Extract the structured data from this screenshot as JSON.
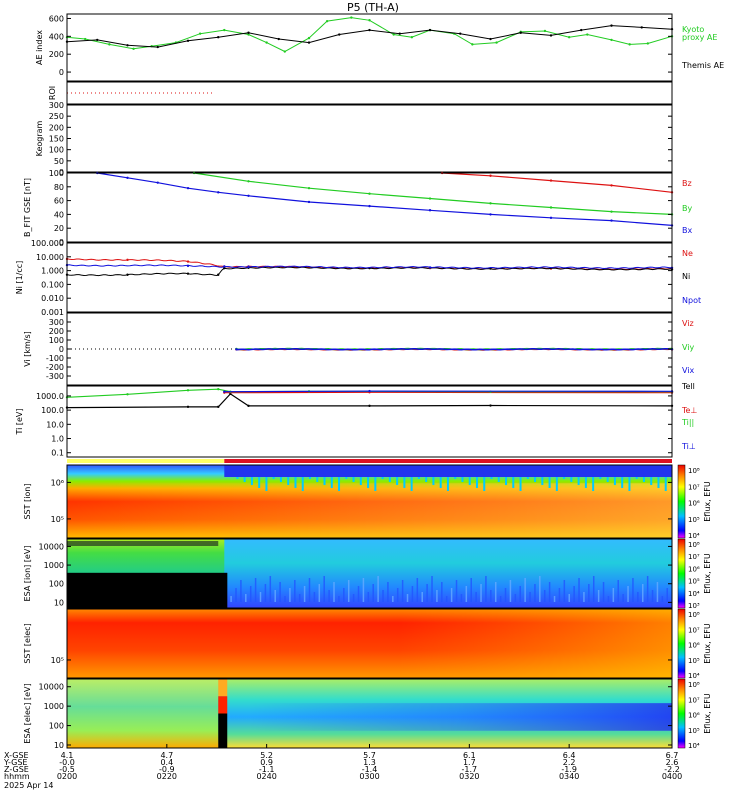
{
  "title": "P5 (TH-A)",
  "colors": {
    "green": "#22cc22",
    "red": "#dd1111",
    "blue": "#1111dd",
    "black": "#000000",
    "bar_yellow": "#ffff66",
    "bar_red": "#dd1122"
  },
  "chart_data": [
    {
      "type": "line",
      "panel": "ae",
      "ylabel": "AE index",
      "ylim": [
        -100,
        650
      ],
      "yticks": [
        0,
        200,
        400,
        600
      ],
      "ytick_labels": [
        "0",
        "200",
        "400",
        "600"
      ],
      "series": [
        {
          "name": "Kyoto proxy AE",
          "color": "green",
          "x": [
            0,
            0.03,
            0.07,
            0.11,
            0.14,
            0.18,
            0.22,
            0.26,
            0.3,
            0.33,
            0.36,
            0.4,
            0.43,
            0.47,
            0.5,
            0.54,
            0.57,
            0.6,
            0.64,
            0.67,
            0.71,
            0.75,
            0.79,
            0.83,
            0.86,
            0.9,
            0.93,
            0.96,
            1.0
          ],
          "values": [
            390,
            370,
            310,
            260,
            290,
            330,
            430,
            470,
            420,
            330,
            230,
            380,
            570,
            610,
            580,
            420,
            390,
            470,
            430,
            310,
            330,
            450,
            460,
            390,
            420,
            360,
            310,
            320,
            400
          ]
        },
        {
          "name": "Themis AE",
          "color": "black",
          "x": [
            0,
            0.05,
            0.1,
            0.15,
            0.2,
            0.25,
            0.3,
            0.35,
            0.4,
            0.45,
            0.5,
            0.55,
            0.6,
            0.65,
            0.7,
            0.75,
            0.8,
            0.85,
            0.9,
            0.95,
            1.0
          ],
          "values": [
            340,
            360,
            300,
            280,
            350,
            390,
            440,
            370,
            330,
            420,
            470,
            430,
            470,
            430,
            370,
            440,
            410,
            470,
            520,
            500,
            480
          ]
        }
      ],
      "legend": [
        {
          "label": "Kyoto",
          "color": "green"
        },
        {
          "label": "proxy AE",
          "color": "green"
        },
        {
          "label": "Themis AE",
          "color": "black"
        }
      ]
    },
    {
      "type": "line",
      "panel": "roi",
      "ylabel": "ROI",
      "ylim": [
        0,
        1
      ],
      "series": [
        {
          "name": "",
          "color": "red",
          "x": [
            0,
            0.24
          ],
          "values": [
            0.5,
            0.5
          ]
        }
      ]
    },
    {
      "type": "line",
      "panel": "keogram",
      "ylabel": "Keogram",
      "ylim": [
        0,
        300
      ],
      "yticks": [
        0,
        50,
        100,
        150,
        200,
        250,
        300
      ],
      "ytick_labels": [
        "0",
        "50",
        "100",
        "150",
        "200",
        "250",
        "300"
      ],
      "series": []
    },
    {
      "type": "line",
      "panel": "b",
      "ylabel": "B_FIT GSE [nT]",
      "ylim": [
        0,
        100
      ],
      "yticks": [
        0,
        20,
        40,
        60,
        80,
        100
      ],
      "ytick_labels": [
        "0",
        "20",
        "40",
        "60",
        "80",
        "100"
      ],
      "series": [
        {
          "name": "Bz",
          "color": "red",
          "x": [
            0.62,
            0.7,
            0.8,
            0.9,
            1.0
          ],
          "values": [
            100,
            96,
            89,
            82,
            72
          ]
        },
        {
          "name": "By",
          "color": "green",
          "x": [
            0.21,
            0.3,
            0.4,
            0.5,
            0.6,
            0.7,
            0.8,
            0.9,
            1.0
          ],
          "values": [
            100,
            88,
            78,
            70,
            63,
            56,
            50,
            44,
            40
          ]
        },
        {
          "name": "Bx",
          "color": "blue",
          "x": [
            0.05,
            0.1,
            0.15,
            0.2,
            0.25,
            0.3,
            0.4,
            0.5,
            0.6,
            0.7,
            0.8,
            0.9,
            1.0
          ],
          "values": [
            100,
            93,
            86,
            78,
            72,
            67,
            58,
            52,
            46,
            40,
            35,
            31,
            24
          ]
        }
      ],
      "legend": [
        {
          "label": "Bz",
          "color": "red"
        },
        {
          "label": "By",
          "color": "green"
        },
        {
          "label": "Bx",
          "color": "blue"
        }
      ]
    },
    {
      "type": "line",
      "panel": "n",
      "yscale": "log",
      "ylabel": "Ni [1/cc]",
      "ylim": [
        0.001,
        100
      ],
      "yticks": [
        0.001,
        0.01,
        0.1,
        1,
        10,
        100
      ],
      "ytick_labels": [
        "0.001",
        "0.010",
        "0.100",
        "1.000",
        "10.000",
        "100.000"
      ],
      "series": [
        {
          "name": "Ne",
          "color": "red",
          "x": [
            0,
            0.1,
            0.2,
            0.26,
            0.3,
            0.4,
            0.6,
            0.8,
            1.0
          ],
          "values": [
            7,
            6,
            4.5,
            2,
            2,
            1.7,
            1.5,
            1.4,
            1.3
          ]
        },
        {
          "name": "Ni",
          "color": "black",
          "x": [
            0,
            0.1,
            0.2,
            0.25,
            0.26,
            0.3,
            0.5,
            0.7,
            1.0
          ],
          "values": [
            0.5,
            0.5,
            0.6,
            0.5,
            1.5,
            1.6,
            1.5,
            1.4,
            1.2
          ]
        },
        {
          "name": "Npot",
          "color": "blue",
          "x": [
            0,
            0.2,
            0.26,
            0.3,
            0.6,
            1.0
          ],
          "values": [
            2.5,
            2.2,
            2.0,
            1.9,
            1.7,
            1.6
          ]
        }
      ],
      "legend": [
        {
          "label": "Ne",
          "color": "red"
        },
        {
          "label": "Ni",
          "color": "black"
        },
        {
          "label": "Npot",
          "color": "blue"
        }
      ]
    },
    {
      "type": "line",
      "panel": "v",
      "ylabel": "Vi [km/s]",
      "ylim": [
        -400,
        400
      ],
      "yticks": [
        -300,
        -200,
        -100,
        0,
        100,
        200,
        300
      ],
      "ytick_labels": [
        "-300",
        "-200",
        "-100",
        "0",
        "100",
        "200",
        "300"
      ],
      "series": [
        {
          "name": "Viz",
          "color": "red",
          "x": [
            0.28,
            1.0
          ],
          "values": [
            -5,
            -5
          ]
        },
        {
          "name": "Viy",
          "color": "green",
          "x": [
            0.28,
            1.0
          ],
          "values": [
            0,
            0
          ]
        },
        {
          "name": "Vix",
          "color": "blue",
          "x": [
            0.28,
            1.0
          ],
          "values": [
            -3,
            -3
          ]
        }
      ],
      "legend": [
        {
          "label": "Viz",
          "color": "red"
        },
        {
          "label": "Viy",
          "color": "green"
        },
        {
          "label": "Vix",
          "color": "blue"
        }
      ]
    },
    {
      "type": "line",
      "panel": "t",
      "yscale": "log",
      "ylabel": "Ti [eV]",
      "ylim": [
        0.05,
        5000
      ],
      "yticks": [
        0.1,
        1,
        10,
        100,
        1000
      ],
      "ytick_labels": [
        "0.1",
        "1.0",
        "10.0",
        "100.0",
        "1000.0"
      ],
      "series": [
        {
          "name": "Tell",
          "color": "black",
          "x": [
            0,
            0.2,
            0.25,
            0.27,
            0.3,
            0.5,
            0.7,
            1.0
          ],
          "values": [
            150,
            170,
            170,
            1400,
            200,
            200,
            210,
            200
          ]
        },
        {
          "name": "Te⊥",
          "color": "red",
          "x": [
            0.26,
            0.5,
            1.0
          ],
          "values": [
            1700,
            1800,
            1700
          ]
        },
        {
          "name": "Ti||",
          "color": "green",
          "x": [
            0,
            0.1,
            0.2,
            0.25,
            0.27,
            0.4,
            0.7,
            1.0
          ],
          "values": [
            800,
            1300,
            2500,
            3000,
            2000,
            2100,
            2000,
            2000
          ]
        },
        {
          "name": "Ti⊥",
          "color": "blue",
          "x": [
            0.26,
            0.5,
            1.0
          ],
          "values": [
            2000,
            2200,
            2100
          ]
        }
      ],
      "legend": [
        {
          "label": "Tell",
          "color": "black"
        },
        {
          "label": "Te⊥",
          "color": "red"
        },
        {
          "label": "Ti||",
          "color": "green"
        },
        {
          "label": "Ti⊥",
          "color": "blue"
        }
      ]
    },
    {
      "type": "heatmap",
      "panel": "sst_i",
      "ylabel": "SST [ion]",
      "yscale": "log",
      "ylim": [
        30000,
        3000000
      ],
      "yticks": [
        100000,
        1000000
      ],
      "ytick_labels": [
        "10⁵",
        "10⁶"
      ],
      "colorbar": {
        "label": "Eflux, EFU",
        "ticks": [
          "10⁴",
          "10⁵",
          "10⁶",
          "10⁷",
          "10⁸"
        ]
      }
    },
    {
      "type": "heatmap",
      "panel": "esa_i",
      "ylabel": "ESA [ion] [eV]",
      "yscale": "log",
      "ylim": [
        5,
        25000
      ],
      "yticks": [
        10,
        100,
        1000,
        10000
      ],
      "ytick_labels": [
        "10",
        "100",
        "1000",
        "10000"
      ],
      "colorbar": {
        "label": "Eflux, EFU",
        "ticks": [
          "10³",
          "10⁴",
          "10⁵",
          "10⁶",
          "10⁷",
          "10⁸"
        ]
      }
    },
    {
      "type": "heatmap",
      "panel": "sst_e",
      "ylabel": "SST [elec]",
      "yscale": "log",
      "ylim": [
        30000,
        3000000
      ],
      "yticks": [
        100000
      ],
      "ytick_labels": [
        "10⁵"
      ],
      "colorbar": {
        "label": "Eflux, EFU",
        "ticks": [
          "10⁴",
          "10⁵",
          "10⁶",
          "10⁷",
          "10⁸"
        ]
      }
    },
    {
      "type": "heatmap",
      "panel": "esa_e",
      "ylabel": "ESA [elec] [eV]",
      "yscale": "log",
      "ylim": [
        7,
        25000
      ],
      "yticks": [
        10,
        100,
        1000,
        10000
      ],
      "ytick_labels": [
        "10",
        "100",
        "1000",
        "10000"
      ],
      "colorbar": {
        "label": "Eflux, EFU",
        "ticks": [
          "10⁴",
          "10⁵",
          "10⁶",
          "10⁷",
          "10⁸"
        ]
      }
    }
  ],
  "x_axis": {
    "row_labels": [
      "X-GSE",
      "Y-GSE",
      "Z-GSE",
      "hhmm",
      "2025 Apr 14"
    ],
    "ticks": [
      {
        "frac": 0.0,
        "values": [
          "4.1",
          "-0.0",
          "-0.5",
          "0200"
        ]
      },
      {
        "frac": 0.165,
        "values": [
          "4.7",
          "0.4",
          "-0.9",
          "0220"
        ]
      },
      {
        "frac": 0.33,
        "values": [
          "5.2",
          "0.9",
          "-1.1",
          "0240"
        ]
      },
      {
        "frac": 0.5,
        "values": [
          "5.7",
          "1.3",
          "-1.4",
          "0300"
        ]
      },
      {
        "frac": 0.665,
        "values": [
          "6.1",
          "1.7",
          "-1.7",
          "0320"
        ]
      },
      {
        "frac": 0.83,
        "values": [
          "6.4",
          "2.2",
          "-1.9",
          "0340"
        ]
      },
      {
        "frac": 1.0,
        "values": [
          "6.7",
          "2.6",
          "-2.2",
          "0400"
        ]
      }
    ]
  }
}
